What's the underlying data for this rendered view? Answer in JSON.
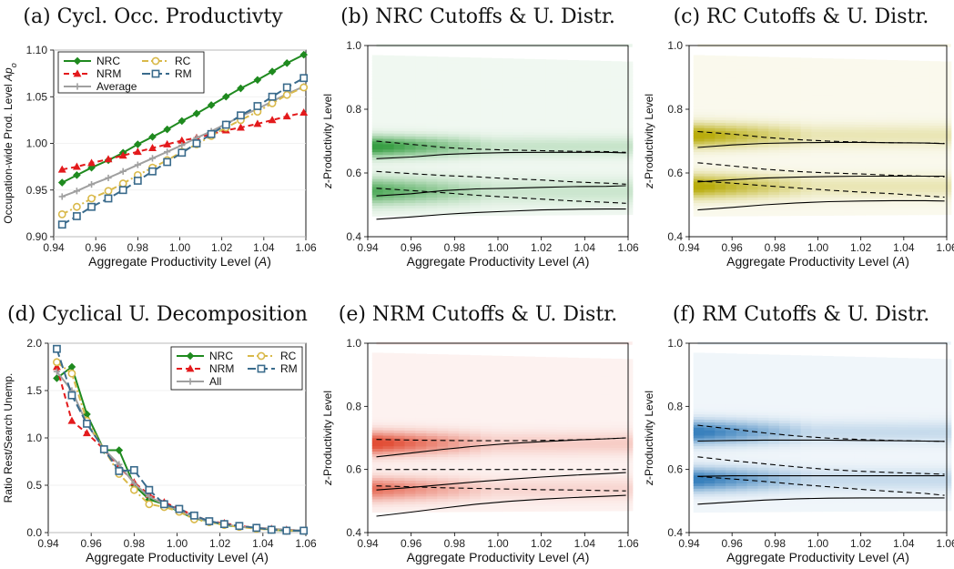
{
  "panels": [
    {
      "title": "(a) Cycl. Occ. Productivty",
      "xlabel": "Aggregate Productivity Level (A)",
      "ylabel": "Occupation-wide Prod. Level Ap_o"
    },
    {
      "title": "(b) NRC Cutoffs & U. Distr.",
      "xlabel": "Aggregate Productivity Level (A)",
      "ylabel": "z-Productivity Level"
    },
    {
      "title": "(c) RC Cutoffs & U. Distr.",
      "xlabel": "Aggregate Productivity Level (A)",
      "ylabel": "z-Productivity Level"
    },
    {
      "title": "(d) Cyclical U. Decomposition",
      "xlabel": "Aggregate Productivity Level (A)",
      "ylabel": "Ratio Rest/Search Unemp."
    },
    {
      "title": "(e) NRM Cutoffs & U. Distr.",
      "xlabel": "Aggregate Productivity Level (A)",
      "ylabel": "z-Productivity Level"
    },
    {
      "title": "(f) RM Cutoffs & U. Distr.",
      "xlabel": "Aggregate Productivity Level (A)",
      "ylabel": "z-Productivity Level"
    }
  ],
  "chart_data": [
    {
      "type": "line",
      "title": "(a) Cycl. Occ. Productivty",
      "xlabel": "Aggregate Productivity Level (A)",
      "ylabel": "Occupation-wide Prod. Level Ap_o",
      "xlim": [
        0.94,
        1.06
      ],
      "ylim": [
        0.9,
        1.1
      ],
      "xticks": [
        0.94,
        0.96,
        0.98,
        1.0,
        1.02,
        1.04,
        1.06
      ],
      "yticks": [
        0.9,
        0.95,
        1.0,
        1.05,
        1.1
      ],
      "legend_position": "top-left",
      "x": [
        0.944,
        0.951,
        0.958,
        0.966,
        0.973,
        0.98,
        0.987,
        0.994,
        1.001,
        1.008,
        1.015,
        1.022,
        1.029,
        1.037,
        1.044,
        1.051,
        1.059
      ],
      "series": [
        {
          "name": "NRC",
          "color": "#1f8a1f",
          "marker": "diamond",
          "dash": "solid",
          "values": [
            0.958,
            0.966,
            0.974,
            0.982,
            0.99,
            0.999,
            1.007,
            1.015,
            1.024,
            1.032,
            1.041,
            1.05,
            1.059,
            1.068,
            1.077,
            1.086,
            1.095
          ]
        },
        {
          "name": "NRM",
          "color": "#e31a1c",
          "marker": "triangle",
          "dash": "dash",
          "values": [
            0.972,
            0.975,
            0.979,
            0.983,
            0.987,
            0.991,
            0.995,
            0.999,
            1.003,
            1.006,
            1.01,
            1.014,
            1.017,
            1.021,
            1.025,
            1.029,
            1.033
          ]
        },
        {
          "name": "Average",
          "color": "#a0a0a0",
          "marker": "plus",
          "dash": "solid",
          "values": [
            0.943,
            0.949,
            0.956,
            0.963,
            0.97,
            0.977,
            0.984,
            0.991,
            0.998,
            1.006,
            1.013,
            1.021,
            1.029,
            1.037,
            1.045,
            1.053,
            1.061
          ]
        },
        {
          "name": "RC",
          "color": "#d9b94a",
          "marker": "circle",
          "dash": "dashdot",
          "values": [
            0.924,
            0.932,
            0.941,
            0.949,
            0.957,
            0.966,
            0.974,
            0.982,
            0.991,
            0.999,
            1.008,
            1.017,
            1.025,
            1.034,
            1.043,
            1.052,
            1.06
          ]
        },
        {
          "name": "RM",
          "color": "#3a6b8c",
          "marker": "square",
          "dash": "longdash",
          "values": [
            0.913,
            0.922,
            0.932,
            0.941,
            0.95,
            0.96,
            0.97,
            0.98,
            0.99,
            1.0,
            1.01,
            1.02,
            1.03,
            1.04,
            1.05,
            1.06,
            1.07
          ]
        }
      ]
    },
    {
      "type": "heatmap",
      "title": "(b) NRC Cutoffs & U. Distr.",
      "xlabel": "Aggregate Productivity Level (A)",
      "ylabel": "z-Productivity Level",
      "xlim": [
        0.94,
        1.06
      ],
      "ylim": [
        0.4,
        1.0
      ],
      "xticks": [
        0.94,
        0.96,
        0.98,
        1.0,
        1.02,
        1.04,
        1.06
      ],
      "yticks": [
        0.4,
        0.6,
        0.8,
        1.0
      ],
      "shade_color": "#2e9a3a",
      "density_bands": [
        {
          "y": 0.68,
          "sigma": 0.022,
          "peak_strength": 0.95,
          "edge_strength": 0.2
        },
        {
          "y": 0.54,
          "sigma": 0.028,
          "peak_strength": 0.75,
          "edge_strength": 0.18
        }
      ],
      "x": [
        0.944,
        0.96,
        0.975,
        0.99,
        1.005,
        1.02,
        1.035,
        1.05,
        1.059
      ],
      "cutoff_lines": [
        {
          "style": "dash",
          "values": [
            0.7,
            0.69,
            0.68,
            0.675,
            0.672,
            0.67,
            0.668,
            0.667,
            0.665
          ]
        },
        {
          "style": "solid",
          "values": [
            0.645,
            0.65,
            0.658,
            0.662,
            0.664,
            0.665,
            0.665,
            0.665,
            0.663
          ]
        },
        {
          "style": "dash",
          "values": [
            0.605,
            0.598,
            0.592,
            0.588,
            0.582,
            0.578,
            0.572,
            0.568,
            0.565
          ]
        },
        {
          "style": "dash",
          "values": [
            0.552,
            0.545,
            0.538,
            0.53,
            0.524,
            0.518,
            0.512,
            0.508,
            0.505
          ]
        },
        {
          "style": "solid",
          "values": [
            0.528,
            0.535,
            0.545,
            0.55,
            0.552,
            0.555,
            0.557,
            0.558,
            0.56
          ]
        },
        {
          "style": "solid",
          "values": [
            0.455,
            0.462,
            0.47,
            0.476,
            0.48,
            0.484,
            0.486,
            0.487,
            0.487
          ]
        }
      ]
    },
    {
      "type": "heatmap",
      "title": "(c) RC Cutoffs & U. Distr.",
      "xlabel": "Aggregate Productivity Level (A)",
      "ylabel": "z-Productivity Level",
      "xlim": [
        0.94,
        1.06
      ],
      "ylim": [
        0.4,
        1.0
      ],
      "xticks": [
        0.94,
        0.96,
        0.98,
        1.0,
        1.02,
        1.04,
        1.06
      ],
      "yticks": [
        0.4,
        0.6,
        0.8,
        1.0
      ],
      "shade_color": "#b5a800",
      "density_bands": [
        {
          "y": 0.715,
          "sigma": 0.025,
          "peak_strength": 0.95,
          "edge_strength": 0.22
        },
        {
          "y": 0.555,
          "sigma": 0.025,
          "peak_strength": 0.95,
          "edge_strength": 0.22
        }
      ],
      "x": [
        0.944,
        0.96,
        0.975,
        0.99,
        1.005,
        1.02,
        1.035,
        1.05,
        1.059
      ],
      "cutoff_lines": [
        {
          "style": "dash",
          "values": [
            0.73,
            0.722,
            0.712,
            0.705,
            0.7,
            0.697,
            0.695,
            0.694,
            0.693
          ]
        },
        {
          "style": "solid",
          "values": [
            0.68,
            0.688,
            0.693,
            0.695,
            0.696,
            0.696,
            0.695,
            0.694,
            0.692
          ]
        },
        {
          "style": "dash",
          "values": [
            0.632,
            0.622,
            0.612,
            0.605,
            0.6,
            0.597,
            0.593,
            0.59,
            0.588
          ]
        },
        {
          "style": "solid",
          "values": [
            0.572,
            0.579,
            0.584,
            0.587,
            0.589,
            0.59,
            0.59,
            0.59,
            0.59
          ]
        },
        {
          "style": "dash",
          "values": [
            0.575,
            0.568,
            0.56,
            0.553,
            0.546,
            0.54,
            0.535,
            0.528,
            0.524
          ]
        },
        {
          "style": "solid",
          "values": [
            0.484,
            0.492,
            0.5,
            0.506,
            0.51,
            0.512,
            0.513,
            0.513,
            0.512
          ]
        }
      ]
    },
    {
      "type": "line",
      "title": "(d) Cyclical U. Decomposition",
      "xlabel": "Aggregate Productivity Level (A)",
      "ylabel": "Ratio Rest/Search Unemp.",
      "xlim": [
        0.94,
        1.06
      ],
      "ylim": [
        0.0,
        2.0
      ],
      "xticks": [
        0.94,
        0.96,
        0.98,
        1.0,
        1.02,
        1.04,
        1.06
      ],
      "yticks": [
        0.0,
        0.5,
        1.0,
        1.5,
        2.0
      ],
      "legend_position": "top-right",
      "x": [
        0.944,
        0.951,
        0.958,
        0.966,
        0.973,
        0.98,
        0.987,
        0.994,
        1.001,
        1.008,
        1.015,
        1.022,
        1.029,
        1.037,
        1.044,
        1.051,
        1.059
      ],
      "series": [
        {
          "name": "NRC",
          "color": "#1f8a1f",
          "marker": "diamond",
          "dash": "solid",
          "values": [
            1.63,
            1.75,
            1.25,
            0.87,
            0.87,
            0.5,
            0.35,
            0.3,
            0.22,
            0.15,
            0.12,
            0.08,
            0.06,
            0.05,
            0.03,
            0.02,
            0.02
          ]
        },
        {
          "name": "NRM",
          "color": "#e31a1c",
          "marker": "triangle",
          "dash": "dash",
          "values": [
            1.75,
            1.18,
            1.05,
            0.88,
            0.7,
            0.53,
            0.4,
            0.32,
            0.25,
            0.18,
            0.12,
            0.1,
            0.07,
            0.05,
            0.04,
            0.03,
            0.02
          ]
        },
        {
          "name": "All",
          "color": "#a0a0a0",
          "marker": "plus",
          "dash": "solid",
          "values": [
            1.7,
            1.5,
            1.15,
            0.88,
            0.72,
            0.52,
            0.38,
            0.3,
            0.23,
            0.16,
            0.12,
            0.09,
            0.06,
            0.05,
            0.04,
            0.03,
            0.02
          ]
        },
        {
          "name": "RC",
          "color": "#d9b94a",
          "marker": "circle",
          "dash": "dashdot",
          "values": [
            1.8,
            1.68,
            1.18,
            0.88,
            0.62,
            0.45,
            0.3,
            0.27,
            0.22,
            0.14,
            0.11,
            0.08,
            0.06,
            0.04,
            0.03,
            0.02,
            0.02
          ]
        },
        {
          "name": "RM",
          "color": "#3a6b8c",
          "marker": "square",
          "dash": "longdash",
          "values": [
            1.94,
            1.45,
            1.15,
            0.88,
            0.65,
            0.66,
            0.45,
            0.3,
            0.25,
            0.18,
            0.12,
            0.09,
            0.07,
            0.05,
            0.03,
            0.02,
            0.02
          ]
        }
      ]
    },
    {
      "type": "heatmap",
      "title": "(e) NRM Cutoffs & U. Distr.",
      "xlabel": "Aggregate Productivity Level (A)",
      "ylabel": "z-Productivity Level",
      "xlim": [
        0.94,
        1.06
      ],
      "ylim": [
        0.4,
        1.0
      ],
      "xticks": [
        0.94,
        0.96,
        0.98,
        1.0,
        1.02,
        1.04,
        1.06
      ],
      "yticks": [
        0.4,
        0.6,
        0.8,
        1.0
      ],
      "shade_color": "#e0452c",
      "density_bands": [
        {
          "y": 0.68,
          "sigma": 0.025,
          "peak_strength": 0.95,
          "edge_strength": 0.2
        },
        {
          "y": 0.535,
          "sigma": 0.025,
          "peak_strength": 0.7,
          "edge_strength": 0.15
        }
      ],
      "x": [
        0.944,
        0.96,
        0.975,
        0.99,
        1.005,
        1.02,
        1.035,
        1.05,
        1.059
      ],
      "cutoff_lines": [
        {
          "style": "dash",
          "values": [
            0.695,
            0.693,
            0.692,
            0.691,
            0.691,
            0.692,
            0.694,
            0.697,
            0.7
          ]
        },
        {
          "style": "solid",
          "values": [
            0.64,
            0.652,
            0.664,
            0.674,
            0.682,
            0.688,
            0.693,
            0.697,
            0.7
          ]
        },
        {
          "style": "dash",
          "values": [
            0.6,
            0.6,
            0.6,
            0.6,
            0.6,
            0.6,
            0.6,
            0.6,
            0.6
          ]
        },
        {
          "style": "dash",
          "values": [
            0.548,
            0.545,
            0.542,
            0.54,
            0.538,
            0.536,
            0.535,
            0.533,
            0.532
          ]
        },
        {
          "style": "solid",
          "values": [
            0.535,
            0.543,
            0.552,
            0.561,
            0.569,
            0.576,
            0.582,
            0.587,
            0.59
          ]
        },
        {
          "style": "solid",
          "values": [
            0.452,
            0.465,
            0.478,
            0.49,
            0.499,
            0.506,
            0.511,
            0.515,
            0.518
          ]
        }
      ]
    },
    {
      "type": "heatmap",
      "title": "(f) RM Cutoffs & U. Distr.",
      "xlabel": "Aggregate Productivity Level (A)",
      "ylabel": "z-Productivity Level",
      "xlim": [
        0.94,
        1.06
      ],
      "ylim": [
        0.4,
        1.0
      ],
      "xticks": [
        0.94,
        0.96,
        0.98,
        1.0,
        1.02,
        1.04,
        1.06
      ],
      "yticks": [
        0.4,
        0.6,
        0.8,
        1.0
      ],
      "shade_color": "#2f7ab9",
      "density_bands": [
        {
          "y": 0.715,
          "sigma": 0.025,
          "peak_strength": 0.95,
          "edge_strength": 0.2
        },
        {
          "y": 0.565,
          "sigma": 0.025,
          "peak_strength": 0.95,
          "edge_strength": 0.2
        }
      ],
      "x": [
        0.944,
        0.96,
        0.975,
        0.99,
        1.005,
        1.02,
        1.035,
        1.05,
        1.059
      ],
      "cutoff_lines": [
        {
          "style": "dash",
          "values": [
            0.74,
            0.728,
            0.716,
            0.706,
            0.699,
            0.695,
            0.692,
            0.69,
            0.689
          ]
        },
        {
          "style": "solid",
          "values": [
            0.69,
            0.692,
            0.693,
            0.693,
            0.693,
            0.692,
            0.691,
            0.69,
            0.689
          ]
        },
        {
          "style": "dash",
          "values": [
            0.64,
            0.628,
            0.618,
            0.608,
            0.6,
            0.594,
            0.59,
            0.587,
            0.585
          ]
        },
        {
          "style": "solid",
          "values": [
            0.578,
            0.58,
            0.58,
            0.58,
            0.58,
            0.58,
            0.58,
            0.58,
            0.58
          ]
        },
        {
          "style": "dash",
          "values": [
            0.578,
            0.57,
            0.562,
            0.553,
            0.545,
            0.537,
            0.53,
            0.524,
            0.518
          ]
        },
        {
          "style": "solid",
          "values": [
            0.49,
            0.497,
            0.503,
            0.507,
            0.509,
            0.51,
            0.51,
            0.51,
            0.51
          ]
        }
      ]
    }
  ]
}
